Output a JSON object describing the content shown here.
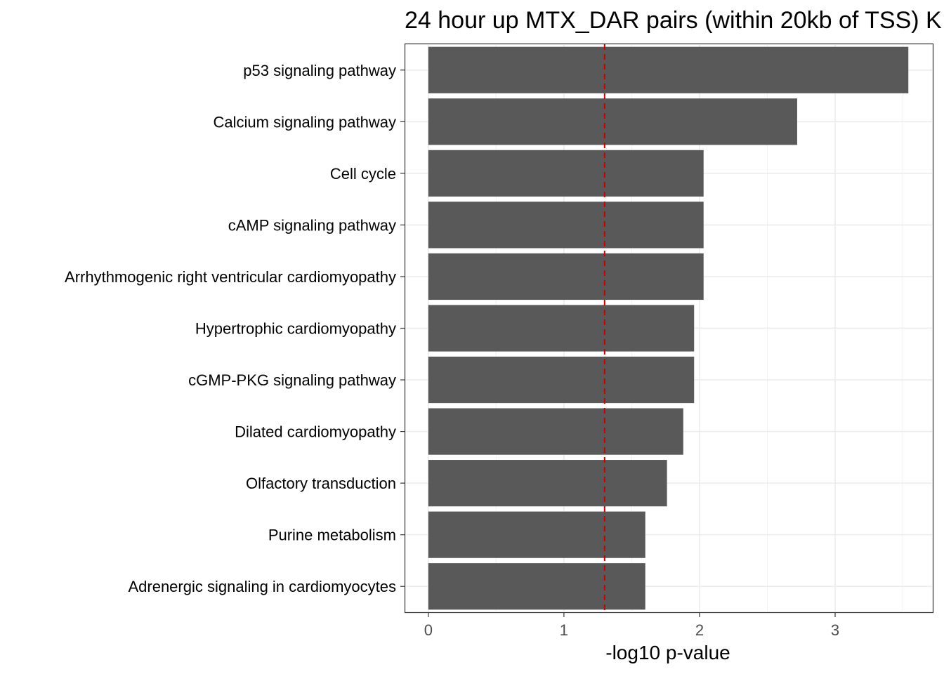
{
  "chart_data": {
    "type": "bar",
    "orientation": "horizontal",
    "title": "24 hour up MTX_DAR pairs (within 20kb of TSS) K",
    "xlabel": "-log10 p-value",
    "ylabel": "",
    "xlim": [
      -0.17,
      3.72
    ],
    "xticks": [
      0,
      1,
      2,
      3
    ],
    "grid": true,
    "categories": [
      "p53 signaling pathway",
      "Calcium signaling pathway",
      "Cell cycle",
      "cAMP signaling pathway",
      "Arrhythmogenic right ventricular cardiomyopathy",
      "Hypertrophic cardiomyopathy",
      "cGMP-PKG signaling pathway",
      "Dilated cardiomyopathy",
      "Olfactory transduction",
      "Purine metabolism",
      "Adrenergic signaling in cardiomyocytes"
    ],
    "values": [
      3.54,
      2.72,
      2.03,
      2.03,
      2.03,
      1.96,
      1.96,
      1.88,
      1.76,
      1.6,
      1.6
    ],
    "reference_line": {
      "value": 1.3,
      "style": "dashed",
      "color": "#cc0000"
    },
    "bar_color": "#595959"
  }
}
